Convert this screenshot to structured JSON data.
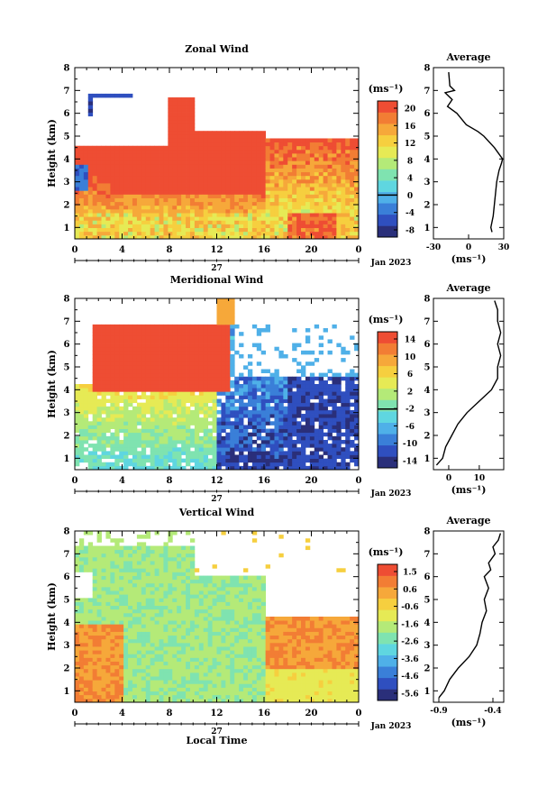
{
  "colorscale": [
    "#2a2f7a",
    "#2f4fbf",
    "#3a7fd8",
    "#4fb0e8",
    "#5fd6e0",
    "#7fe3b0",
    "#b4ea78",
    "#e6ea55",
    "#f6cf3f",
    "#f6a83a",
    "#f27d34",
    "#ee4d33"
  ],
  "chart_data": [
    {
      "type": "heatmap",
      "title": "Zonal Wind",
      "ylabel": "Height (km)",
      "ylim": [
        0.5,
        8
      ],
      "yticks": [
        "1",
        "2",
        "3",
        "4",
        "5",
        "6",
        "7",
        "8"
      ],
      "xticks": [
        "0",
        "4",
        "8",
        "12",
        "16",
        "20",
        "0"
      ],
      "date_day": "27",
      "date_label": "Jan 2023",
      "units": "(ms⁻¹)",
      "colorbar_ticks": [
        "20",
        "16",
        "12",
        "8",
        "4",
        "0",
        "-4",
        "-8"
      ],
      "colorbar_range": [
        -10,
        22
      ],
      "zero_contour": true,
      "profile": {
        "title": "Average",
        "xticks": [
          "-30",
          "0",
          "30"
        ],
        "xlabel": "(ms⁻¹)",
        "xlim": [
          -30,
          30
        ],
        "height": [
          0.8,
          1.0,
          1.5,
          2.0,
          2.5,
          3.0,
          3.5,
          3.8,
          4.0,
          4.5,
          5.0,
          5.2,
          5.5,
          6.0,
          6.3,
          6.6,
          6.9,
          7.0,
          7.2,
          7.8
        ],
        "value": [
          20,
          19,
          21,
          22,
          23,
          24,
          26,
          28,
          29,
          22,
          13,
          8,
          -2,
          -10,
          -18,
          -14,
          -20,
          -12,
          -16,
          -17
        ]
      }
    },
    {
      "type": "heatmap",
      "title": "Meridional Wind",
      "ylabel": "Height (km)",
      "ylim": [
        0.5,
        8
      ],
      "yticks": [
        "1",
        "2",
        "3",
        "4",
        "5",
        "6",
        "7",
        "8"
      ],
      "xticks": [
        "0",
        "4",
        "8",
        "12",
        "16",
        "20",
        "0"
      ],
      "date_day": "27",
      "date_label": "Jan 2023",
      "units": "(ms⁻¹)",
      "colorbar_ticks": [
        "14",
        "10",
        "6",
        "2",
        "-2",
        "-6",
        "-10",
        "-14"
      ],
      "colorbar_range": [
        -16,
        16
      ],
      "zero_contour": true,
      "profile": {
        "title": "Average",
        "xticks": [
          "0",
          "10"
        ],
        "xlabel": "(ms⁻¹)",
        "xlim": [
          -5,
          18
        ],
        "height": [
          0.7,
          1.0,
          1.5,
          2.0,
          2.5,
          3.0,
          3.5,
          4.0,
          4.5,
          5.0,
          5.5,
          6.0,
          6.5,
          7.0,
          7.5,
          7.9
        ],
        "value": [
          -4,
          -2,
          -1,
          1,
          3,
          6,
          10,
          14,
          16,
          16,
          17,
          16,
          17,
          16,
          16,
          15
        ]
      }
    },
    {
      "type": "heatmap",
      "title": "Vertical Wind",
      "ylabel": "Height (km)",
      "ylim": [
        0.5,
        8
      ],
      "yticks": [
        "1",
        "2",
        "3",
        "4",
        "5",
        "6",
        "7",
        "8"
      ],
      "xticks": [
        "0",
        "4",
        "8",
        "12",
        "16",
        "20",
        "0"
      ],
      "date_day": "27",
      "date_label": "Jan 2023",
      "xlabel": "Local Time",
      "units": "(ms⁻¹)",
      "colorbar_ticks": [
        "1.5",
        "0.6",
        "-0.6",
        "-1.6",
        "-2.6",
        "-3.6",
        "-4.6",
        "-5.6"
      ],
      "colorbar_range": [
        -6,
        2
      ],
      "zero_contour": false,
      "profile": {
        "title": "Average",
        "xticks": [
          "-0.9",
          "-0.4"
        ],
        "xlabel": "(ms⁻¹)",
        "xlim": [
          -0.95,
          -0.3
        ],
        "height": [
          0.7,
          1.0,
          1.5,
          2.0,
          2.5,
          3.0,
          3.5,
          4.0,
          4.5,
          5.0,
          5.5,
          6.0,
          6.3,
          6.6,
          7.0,
          7.3,
          7.6,
          7.9
        ],
        "value": [
          -0.9,
          -0.85,
          -0.8,
          -0.72,
          -0.62,
          -0.55,
          -0.52,
          -0.5,
          -0.46,
          -0.48,
          -0.44,
          -0.48,
          -0.42,
          -0.44,
          -0.38,
          -0.4,
          -0.35,
          -0.33
        ]
      }
    }
  ]
}
